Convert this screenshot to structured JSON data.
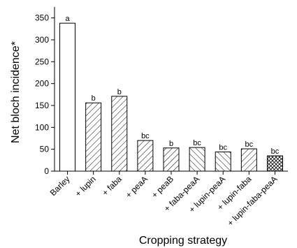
{
  "chart_data": {
    "type": "bar",
    "title": "",
    "xlabel": "Cropping strategy",
    "ylabel": "Net bloch incidence*",
    "ylim": [
      0,
      375
    ],
    "yticks": [
      0,
      50,
      100,
      150,
      200,
      250,
      300,
      350
    ],
    "grid": false,
    "categories": [
      "Barley",
      "+ lupin",
      "+ faba",
      "+ peaA",
      "+ peaB",
      "+ faba-peaA",
      "+ lupin-peaA",
      "+ lupin-faba",
      "+ lupin-faba-peaA"
    ],
    "values": [
      338,
      156,
      171,
      70,
      53,
      54,
      44,
      51,
      35
    ],
    "significance_labels": [
      "a",
      "b",
      "b",
      "bc",
      "b",
      "bc",
      "bc",
      "bc",
      "bc"
    ],
    "fills": [
      "none",
      "hatch-forward",
      "hatch-forward",
      "hatch-forward",
      "hatch-forward",
      "hatch-back",
      "hatch-back",
      "hatch-forward",
      "cross-hatch"
    ]
  }
}
